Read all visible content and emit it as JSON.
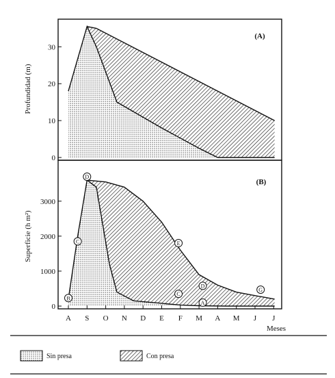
{
  "chart_data": [
    {
      "panel": "(A)",
      "type": "area",
      "ylabel": "Profundidad (m)",
      "yticks": [
        0,
        10,
        20,
        30
      ],
      "ylim": [
        0,
        36
      ],
      "x_categories": [
        "A",
        "S",
        "O",
        "N",
        "D",
        "E",
        "F",
        "M",
        "A",
        "M",
        "J",
        "J"
      ],
      "series": [
        {
          "name": "Sin presa",
          "points": [
            [
              0,
              18
            ],
            [
              1,
              35.5
            ],
            [
              1.5,
              30
            ],
            [
              2.6,
              15
            ],
            [
              5,
              8
            ],
            [
              7,
              2.5
            ],
            [
              8,
              0
            ],
            [
              11.05,
              0
            ]
          ]
        },
        {
          "name": "Con presa",
          "points": [
            [
              1,
              35.5
            ],
            [
              1.5,
              35
            ],
            [
              11.05,
              10
            ]
          ]
        }
      ]
    },
    {
      "panel": "(B)",
      "type": "area",
      "ylabel": "Superficie (h m²)",
      "xlabel": "Meses",
      "yticks": [
        0,
        1000,
        2000,
        3000
      ],
      "ylim": [
        0,
        3700
      ],
      "x_categories": [
        "A",
        "S",
        "O",
        "N",
        "D",
        "E",
        "F",
        "M",
        "A",
        "M",
        "J",
        "J"
      ],
      "series": [
        {
          "name": "Sin presa",
          "points": [
            [
              0,
              200
            ],
            [
              0.5,
              2000
            ],
            [
              1,
              3600
            ],
            [
              1.5,
              3400
            ],
            [
              2.2,
              1200
            ],
            [
              2.6,
              400
            ],
            [
              3.5,
              150
            ],
            [
              5,
              80
            ],
            [
              6,
              30
            ],
            [
              7,
              10
            ],
            [
              8.5,
              0
            ],
            [
              11.05,
              0
            ]
          ]
        },
        {
          "name": "Con presa",
          "points": [
            [
              1,
              3600
            ],
            [
              2,
              3550
            ],
            [
              3,
              3400
            ],
            [
              4,
              3000
            ],
            [
              5,
              2400
            ],
            [
              6,
              1600
            ],
            [
              7,
              900
            ],
            [
              8,
              600
            ],
            [
              9,
              400
            ],
            [
              10,
              300
            ],
            [
              11.05,
              200
            ]
          ]
        }
      ],
      "markers": [
        {
          "label": "D",
          "x": 1,
          "y": 3700
        },
        {
          "label": "C",
          "x": 0.5,
          "y": 1850
        },
        {
          "label": "B",
          "x": 0,
          "y": 230
        },
        {
          "label": "E",
          "x": 5.9,
          "y": 1800
        },
        {
          "label": "C",
          "x": 5.9,
          "y": 350
        },
        {
          "label": "D",
          "x": 7.2,
          "y": 580
        },
        {
          "label": "A",
          "x": 7.2,
          "y": 100
        },
        {
          "label": "G",
          "x": 10.3,
          "y": 470
        }
      ]
    }
  ],
  "legend": {
    "sin_presa": "Sin presa",
    "con_presa": "Con presa"
  }
}
